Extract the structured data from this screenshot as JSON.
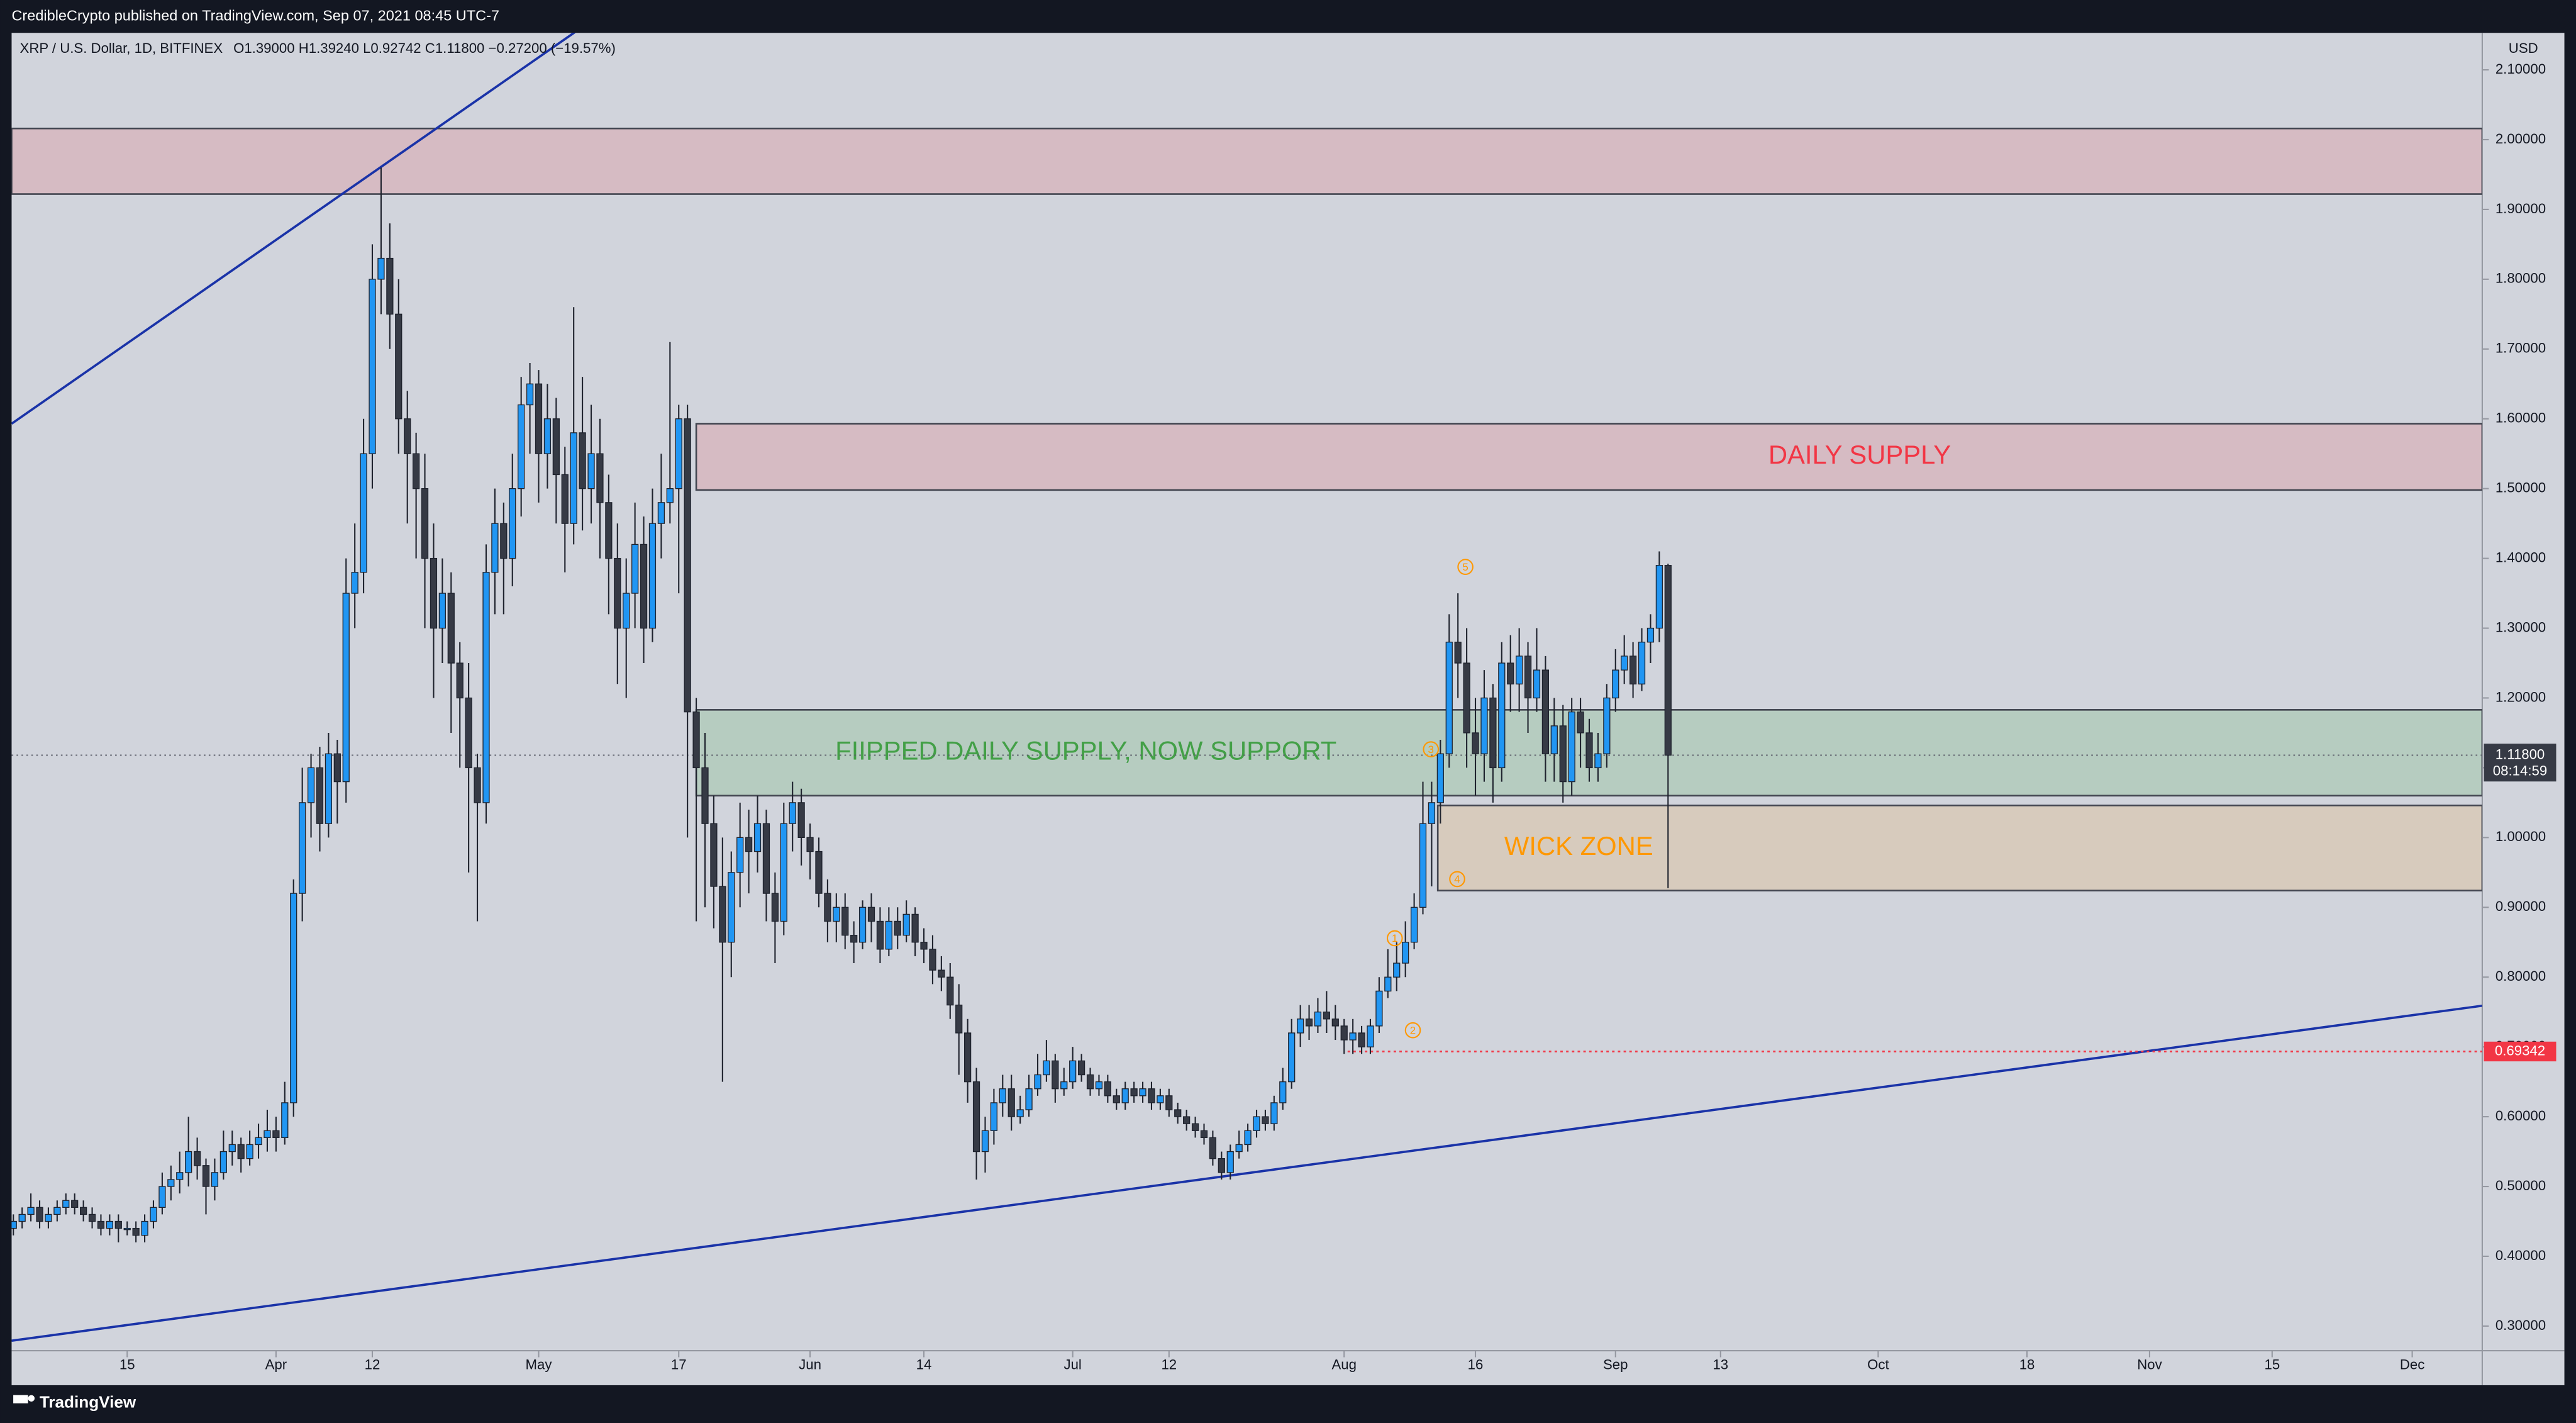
{
  "header": {
    "publisher": "CredibleCrypto published on TradingView.com, Sep 07, 2021 08:45 UTC-7",
    "brand": "TradingView"
  },
  "chart_data": {
    "type": "candlestick",
    "title": "XRP / U.S. Dollar, 1D, BITFINEX",
    "ohlc_text": "O1.39000  H1.39240  L0.92742  C1.11800  −0.27200 (−19.57%)",
    "y_unit": "USD",
    "colors": {
      "up": "#2196f3",
      "down": "#363a45",
      "wick": "#1e222d",
      "background": "#d1d4dc"
    },
    "ohlc": [
      [
        0.44,
        0.46,
        0.43,
        0.45
      ],
      [
        0.45,
        0.47,
        0.44,
        0.46
      ],
      [
        0.46,
        0.49,
        0.45,
        0.47
      ],
      [
        0.47,
        0.48,
        0.44,
        0.45
      ],
      [
        0.45,
        0.47,
        0.44,
        0.46
      ],
      [
        0.46,
        0.48,
        0.45,
        0.47
      ],
      [
        0.47,
        0.49,
        0.46,
        0.48
      ],
      [
        0.48,
        0.49,
        0.46,
        0.47
      ],
      [
        0.47,
        0.48,
        0.45,
        0.46
      ],
      [
        0.46,
        0.47,
        0.44,
        0.45
      ],
      [
        0.45,
        0.46,
        0.43,
        0.44
      ],
      [
        0.44,
        0.46,
        0.43,
        0.45
      ],
      [
        0.45,
        0.46,
        0.42,
        0.44
      ],
      [
        0.44,
        0.45,
        0.43,
        0.44
      ],
      [
        0.44,
        0.45,
        0.42,
        0.43
      ],
      [
        0.43,
        0.46,
        0.42,
        0.45
      ],
      [
        0.45,
        0.48,
        0.44,
        0.47
      ],
      [
        0.47,
        0.52,
        0.46,
        0.5
      ],
      [
        0.5,
        0.53,
        0.48,
        0.51
      ],
      [
        0.51,
        0.55,
        0.49,
        0.52
      ],
      [
        0.52,
        0.6,
        0.5,
        0.55
      ],
      [
        0.55,
        0.57,
        0.51,
        0.53
      ],
      [
        0.53,
        0.54,
        0.46,
        0.5
      ],
      [
        0.5,
        0.54,
        0.48,
        0.52
      ],
      [
        0.52,
        0.58,
        0.51,
        0.55
      ],
      [
        0.55,
        0.58,
        0.53,
        0.56
      ],
      [
        0.56,
        0.57,
        0.52,
        0.54
      ],
      [
        0.54,
        0.58,
        0.53,
        0.56
      ],
      [
        0.56,
        0.59,
        0.54,
        0.57
      ],
      [
        0.57,
        0.61,
        0.55,
        0.58
      ],
      [
        0.58,
        0.6,
        0.55,
        0.57
      ],
      [
        0.57,
        0.65,
        0.56,
        0.62
      ],
      [
        0.62,
        0.94,
        0.6,
        0.92
      ],
      [
        0.92,
        1.1,
        0.88,
        1.05
      ],
      [
        1.05,
        1.12,
        1.0,
        1.1
      ],
      [
        1.1,
        1.13,
        0.98,
        1.02
      ],
      [
        1.02,
        1.15,
        1.0,
        1.12
      ],
      [
        1.12,
        1.14,
        1.02,
        1.08
      ],
      [
        1.08,
        1.4,
        1.05,
        1.35
      ],
      [
        1.35,
        1.45,
        1.3,
        1.38
      ],
      [
        1.38,
        1.6,
        1.35,
        1.55
      ],
      [
        1.55,
        1.85,
        1.5,
        1.8
      ],
      [
        1.8,
        1.96,
        1.75,
        1.83
      ],
      [
        1.83,
        1.88,
        1.7,
        1.75
      ],
      [
        1.75,
        1.8,
        1.55,
        1.6
      ],
      [
        1.6,
        1.64,
        1.45,
        1.55
      ],
      [
        1.55,
        1.58,
        1.4,
        1.5
      ],
      [
        1.5,
        1.55,
        1.3,
        1.4
      ],
      [
        1.4,
        1.45,
        1.2,
        1.3
      ],
      [
        1.3,
        1.4,
        1.25,
        1.35
      ],
      [
        1.35,
        1.38,
        1.15,
        1.25
      ],
      [
        1.25,
        1.28,
        1.1,
        1.2
      ],
      [
        1.2,
        1.25,
        0.95,
        1.1
      ],
      [
        1.1,
        1.12,
        0.88,
        1.05
      ],
      [
        1.05,
        1.42,
        1.02,
        1.38
      ],
      [
        1.38,
        1.5,
        1.32,
        1.45
      ],
      [
        1.45,
        1.48,
        1.32,
        1.4
      ],
      [
        1.4,
        1.55,
        1.36,
        1.5
      ],
      [
        1.5,
        1.66,
        1.46,
        1.62
      ],
      [
        1.62,
        1.68,
        1.55,
        1.65
      ],
      [
        1.65,
        1.67,
        1.48,
        1.55
      ],
      [
        1.55,
        1.65,
        1.5,
        1.6
      ],
      [
        1.6,
        1.63,
        1.45,
        1.52
      ],
      [
        1.52,
        1.56,
        1.38,
        1.45
      ],
      [
        1.45,
        1.76,
        1.42,
        1.58
      ],
      [
        1.58,
        1.66,
        1.44,
        1.5
      ],
      [
        1.5,
        1.62,
        1.45,
        1.55
      ],
      [
        1.55,
        1.6,
        1.4,
        1.48
      ],
      [
        1.48,
        1.52,
        1.32,
        1.4
      ],
      [
        1.4,
        1.45,
        1.22,
        1.3
      ],
      [
        1.3,
        1.4,
        1.2,
        1.35
      ],
      [
        1.35,
        1.48,
        1.3,
        1.42
      ],
      [
        1.42,
        1.46,
        1.25,
        1.3
      ],
      [
        1.3,
        1.5,
        1.28,
        1.45
      ],
      [
        1.45,
        1.55,
        1.4,
        1.48
      ],
      [
        1.48,
        1.71,
        1.45,
        1.5
      ],
      [
        1.5,
        1.62,
        1.35,
        1.6
      ],
      [
        1.6,
        1.62,
        1.0,
        1.18
      ],
      [
        1.18,
        1.2,
        0.88,
        1.1
      ],
      [
        1.1,
        1.15,
        0.9,
        1.02
      ],
      [
        1.02,
        1.06,
        0.87,
        0.93
      ],
      [
        0.93,
        1.0,
        0.65,
        0.85
      ],
      [
        0.85,
        0.98,
        0.8,
        0.95
      ],
      [
        0.95,
        1.05,
        0.9,
        1.0
      ],
      [
        1.0,
        1.04,
        0.92,
        0.98
      ],
      [
        0.98,
        1.06,
        0.95,
        1.02
      ],
      [
        1.02,
        1.04,
        0.88,
        0.92
      ],
      [
        0.92,
        0.95,
        0.82,
        0.88
      ],
      [
        0.88,
        1.05,
        0.86,
        1.02
      ],
      [
        1.02,
        1.08,
        0.98,
        1.05
      ],
      [
        1.05,
        1.07,
        0.96,
        1.0
      ],
      [
        1.0,
        1.02,
        0.94,
        0.98
      ],
      [
        0.98,
        1.0,
        0.9,
        0.92
      ],
      [
        0.92,
        0.94,
        0.85,
        0.88
      ],
      [
        0.88,
        0.92,
        0.85,
        0.9
      ],
      [
        0.9,
        0.92,
        0.84,
        0.86
      ],
      [
        0.86,
        0.88,
        0.82,
        0.85
      ],
      [
        0.85,
        0.91,
        0.84,
        0.9
      ],
      [
        0.9,
        0.92,
        0.85,
        0.88
      ],
      [
        0.88,
        0.9,
        0.82,
        0.84
      ],
      [
        0.84,
        0.9,
        0.83,
        0.88
      ],
      [
        0.88,
        0.9,
        0.84,
        0.86
      ],
      [
        0.86,
        0.91,
        0.85,
        0.89
      ],
      [
        0.89,
        0.9,
        0.83,
        0.85
      ],
      [
        0.85,
        0.87,
        0.82,
        0.84
      ],
      [
        0.84,
        0.86,
        0.79,
        0.81
      ],
      [
        0.81,
        0.83,
        0.78,
        0.8
      ],
      [
        0.8,
        0.82,
        0.74,
        0.76
      ],
      [
        0.76,
        0.79,
        0.66,
        0.72
      ],
      [
        0.72,
        0.74,
        0.62,
        0.65
      ],
      [
        0.65,
        0.67,
        0.51,
        0.55
      ],
      [
        0.55,
        0.6,
        0.52,
        0.58
      ],
      [
        0.58,
        0.64,
        0.56,
        0.62
      ],
      [
        0.62,
        0.66,
        0.6,
        0.64
      ],
      [
        0.64,
        0.66,
        0.58,
        0.6
      ],
      [
        0.6,
        0.63,
        0.59,
        0.61
      ],
      [
        0.61,
        0.66,
        0.6,
        0.64
      ],
      [
        0.64,
        0.69,
        0.63,
        0.66
      ],
      [
        0.66,
        0.71,
        0.65,
        0.68
      ],
      [
        0.68,
        0.69,
        0.62,
        0.64
      ],
      [
        0.64,
        0.67,
        0.63,
        0.65
      ],
      [
        0.65,
        0.7,
        0.64,
        0.68
      ],
      [
        0.68,
        0.69,
        0.65,
        0.66
      ],
      [
        0.66,
        0.67,
        0.63,
        0.64
      ],
      [
        0.64,
        0.66,
        0.63,
        0.65
      ],
      [
        0.65,
        0.66,
        0.62,
        0.63
      ],
      [
        0.63,
        0.64,
        0.61,
        0.62
      ],
      [
        0.62,
        0.65,
        0.61,
        0.64
      ],
      [
        0.64,
        0.65,
        0.62,
        0.63
      ],
      [
        0.63,
        0.65,
        0.62,
        0.64
      ],
      [
        0.64,
        0.65,
        0.61,
        0.62
      ],
      [
        0.62,
        0.64,
        0.61,
        0.63
      ],
      [
        0.63,
        0.64,
        0.6,
        0.61
      ],
      [
        0.61,
        0.62,
        0.59,
        0.6
      ],
      [
        0.6,
        0.61,
        0.58,
        0.59
      ],
      [
        0.59,
        0.6,
        0.57,
        0.58
      ],
      [
        0.58,
        0.59,
        0.56,
        0.57
      ],
      [
        0.57,
        0.58,
        0.53,
        0.54
      ],
      [
        0.54,
        0.55,
        0.51,
        0.52
      ],
      [
        0.52,
        0.56,
        0.51,
        0.55
      ],
      [
        0.55,
        0.58,
        0.54,
        0.56
      ],
      [
        0.56,
        0.59,
        0.55,
        0.58
      ],
      [
        0.58,
        0.61,
        0.57,
        0.6
      ],
      [
        0.6,
        0.61,
        0.58,
        0.59
      ],
      [
        0.59,
        0.63,
        0.58,
        0.62
      ],
      [
        0.62,
        0.67,
        0.61,
        0.65
      ],
      [
        0.65,
        0.74,
        0.64,
        0.72
      ],
      [
        0.72,
        0.76,
        0.7,
        0.74
      ],
      [
        0.74,
        0.76,
        0.71,
        0.73
      ],
      [
        0.73,
        0.77,
        0.72,
        0.75
      ],
      [
        0.75,
        0.78,
        0.72,
        0.74
      ],
      [
        0.74,
        0.76,
        0.71,
        0.73
      ],
      [
        0.73,
        0.74,
        0.69,
        0.71
      ],
      [
        0.71,
        0.74,
        0.69,
        0.72
      ],
      [
        0.72,
        0.73,
        0.69,
        0.7
      ],
      [
        0.7,
        0.74,
        0.69,
        0.73
      ],
      [
        0.73,
        0.8,
        0.72,
        0.78
      ],
      [
        0.78,
        0.84,
        0.77,
        0.8
      ],
      [
        0.8,
        0.85,
        0.78,
        0.82
      ],
      [
        0.82,
        0.88,
        0.8,
        0.85
      ],
      [
        0.85,
        0.92,
        0.84,
        0.9
      ],
      [
        0.9,
        1.08,
        0.89,
        1.02
      ],
      [
        1.02,
        1.08,
        0.93,
        1.05
      ],
      [
        1.05,
        1.14,
        1.02,
        1.12
      ],
      [
        1.12,
        1.32,
        1.1,
        1.28
      ],
      [
        1.28,
        1.35,
        1.2,
        1.25
      ],
      [
        1.25,
        1.3,
        1.1,
        1.15
      ],
      [
        1.15,
        1.2,
        1.06,
        1.12
      ],
      [
        1.12,
        1.24,
        1.08,
        1.2
      ],
      [
        1.2,
        1.22,
        1.05,
        1.1
      ],
      [
        1.1,
        1.28,
        1.08,
        1.25
      ],
      [
        1.25,
        1.29,
        1.18,
        1.22
      ],
      [
        1.22,
        1.3,
        1.18,
        1.26
      ],
      [
        1.26,
        1.28,
        1.15,
        1.2
      ],
      [
        1.2,
        1.3,
        1.18,
        1.24
      ],
      [
        1.24,
        1.26,
        1.08,
        1.12
      ],
      [
        1.12,
        1.2,
        1.08,
        1.16
      ],
      [
        1.16,
        1.19,
        1.05,
        1.08
      ],
      [
        1.08,
        1.2,
        1.06,
        1.18
      ],
      [
        1.18,
        1.2,
        1.1,
        1.15
      ],
      [
        1.15,
        1.17,
        1.08,
        1.1
      ],
      [
        1.1,
        1.15,
        1.08,
        1.12
      ],
      [
        1.12,
        1.22,
        1.1,
        1.2
      ],
      [
        1.2,
        1.27,
        1.18,
        1.24
      ],
      [
        1.24,
        1.29,
        1.22,
        1.26
      ],
      [
        1.26,
        1.28,
        1.2,
        1.22
      ],
      [
        1.22,
        1.3,
        1.21,
        1.28
      ],
      [
        1.28,
        1.32,
        1.25,
        1.3
      ],
      [
        1.3,
        1.41,
        1.28,
        1.39
      ],
      [
        1.39,
        1.3924,
        0.92742,
        1.118
      ]
    ],
    "xlim": [
      -0.2,
      282
    ],
    "xticks": [
      {
        "value": 13,
        "label": "15"
      },
      {
        "value": 30,
        "label": "Apr"
      },
      {
        "value": 41,
        "label": "12"
      },
      {
        "value": 60,
        "label": "May"
      },
      {
        "value": 76,
        "label": "17"
      },
      {
        "value": 91,
        "label": "Jun"
      },
      {
        "value": 104,
        "label": "14"
      },
      {
        "value": 121,
        "label": "Jul"
      },
      {
        "value": 132,
        "label": "12"
      },
      {
        "value": 152,
        "label": "Aug"
      },
      {
        "value": 167,
        "label": "16"
      },
      {
        "value": 183,
        "label": "Sep"
      },
      {
        "value": 195,
        "label": "13"
      },
      {
        "value": 213,
        "label": "Oct"
      },
      {
        "value": 230,
        "label": "18"
      },
      {
        "value": 244,
        "label": "Nov"
      },
      {
        "value": 258,
        "label": "15"
      },
      {
        "value": 274,
        "label": "Dec"
      }
    ],
    "ylim": [
      0.2647,
      2.153
    ],
    "yticks": [
      {
        "value": 0.3,
        "label": "0.30000"
      },
      {
        "value": 0.4,
        "label": "0.40000"
      },
      {
        "value": 0.5,
        "label": "0.50000"
      },
      {
        "value": 0.6,
        "label": "0.60000"
      },
      {
        "value": 0.7,
        "label": "0.70000"
      },
      {
        "value": 0.8,
        "label": "0.80000"
      },
      {
        "value": 0.9,
        "label": "0.90000"
      },
      {
        "value": 1.0,
        "label": "1.00000"
      },
      {
        "value": 1.1,
        "label": "1.10000"
      },
      {
        "value": 1.2,
        "label": "1.20000"
      },
      {
        "value": 1.3,
        "label": "1.30000"
      },
      {
        "value": 1.4,
        "label": "1.40000"
      },
      {
        "value": 1.5,
        "label": "1.50000"
      },
      {
        "value": 1.6,
        "label": "1.60000"
      },
      {
        "value": 1.7,
        "label": "1.70000"
      },
      {
        "value": 1.8,
        "label": "1.80000"
      },
      {
        "value": 1.9,
        "label": "1.90000"
      },
      {
        "value": 2.0,
        "label": "2.00000"
      },
      {
        "value": 2.1,
        "label": "2.10000"
      }
    ],
    "zones": [
      {
        "from": -0.2,
        "range": [
          1.922,
          2.016
        ],
        "color": "rgba(242,54,69,0.16)"
      },
      {
        "from": 78,
        "range": [
          1.498,
          1.593
        ],
        "color": "rgba(242,54,69,0.16)",
        "label": "DAILY SUPPLY",
        "label_color": "#f23645"
      },
      {
        "from": 78,
        "range": [
          1.06,
          1.183
        ],
        "color": "rgba(76,175,80,0.2)",
        "label": "FIIPPED DAILY SUPPLY, NOW SUPPORT",
        "label_color": "#43a047"
      },
      {
        "from": 162.7,
        "range": [
          0.924,
          1.046
        ],
        "color": "rgba(255,152,0,0.14)",
        "label": "WICK ZONE",
        "label_color": "#ff9800"
      }
    ],
    "trendlines": [
      {
        "x": [
          -0.2,
          64.6
        ],
        "y": [
          1.593,
          2.158
        ],
        "color": "#1a33a8"
      },
      {
        "x": [
          -0.2,
          282
        ],
        "y": [
          0.279,
          0.759
        ],
        "color": "#1a33a8"
      }
    ],
    "level": {
      "value": 0.69342,
      "from": 152.4,
      "color": "#f23645"
    },
    "last_price": {
      "value": 1.118,
      "label": "1.11800",
      "countdown": "08:14:59"
    },
    "annotations": [
      "1",
      "2",
      "3",
      "4",
      "5"
    ],
    "annotation_color": "#ff9800"
  }
}
